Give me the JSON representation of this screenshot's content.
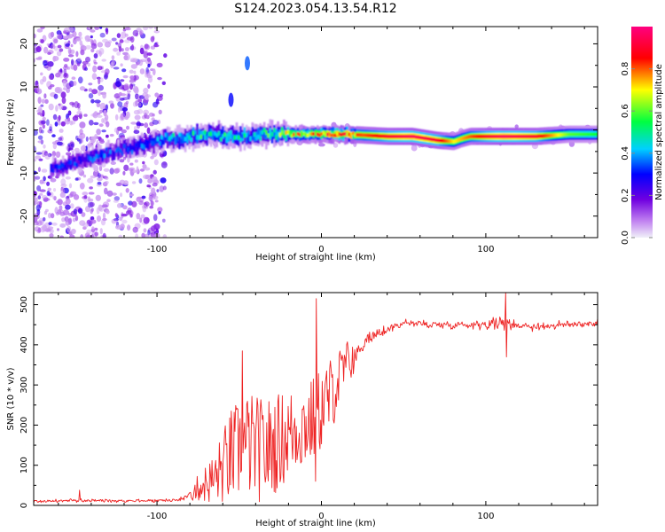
{
  "title": "S124.2023.054.13.54.R12",
  "chart_data": [
    {
      "type": "heatmap",
      "xlabel": "Height of straight line (km)",
      "ylabel": "Frequency (Hz)",
      "xlim": [
        -175,
        168
      ],
      "ylim": [
        -25,
        24
      ],
      "x_ticks": [
        -100,
        0,
        100
      ],
      "y_ticks": [
        -20,
        -10,
        0,
        10,
        20
      ],
      "colorbar": {
        "label": "Normalized spectral amplitude",
        "ticks": [
          0.0,
          0.2,
          0.4,
          0.6,
          0.8
        ],
        "range": [
          0,
          1
        ],
        "colors": [
          "#f0f0f8",
          "#7000e0",
          "#0000ff",
          "#00d0ff",
          "#00ff00",
          "#ffff00",
          "#ff0000",
          "#ff0080"
        ]
      },
      "ridge": {
        "x": [
          -165,
          -155,
          -145,
          -135,
          -125,
          -115,
          -105,
          -95,
          -85,
          -75,
          -65,
          -55,
          -45,
          -35,
          -25,
          -15,
          -5,
          5,
          15,
          25,
          40,
          55,
          70,
          80,
          85,
          90,
          100,
          110,
          130,
          150,
          168
        ],
        "y": [
          -9,
          -8,
          -7,
          -6,
          -5,
          -4,
          -3,
          -2,
          -2,
          -1,
          -1,
          -1.5,
          -1.5,
          -1,
          -1,
          -1,
          -1,
          -1,
          -1,
          -1.2,
          -1.5,
          -1.5,
          -2.4,
          -2.7,
          -2,
          -1.5,
          -1.5,
          -1.5,
          -1.5,
          -1,
          -1
        ],
        "amplitude": [
          0.3,
          0.3,
          0.3,
          0.35,
          0.3,
          0.35,
          0.35,
          0.4,
          0.45,
          0.5,
          0.5,
          0.5,
          0.45,
          0.5,
          0.6,
          0.7,
          0.75,
          0.85,
          0.85,
          0.8,
          0.9,
          0.95,
          0.9,
          0.7,
          0.75,
          0.8,
          0.9,
          0.95,
          0.9,
          0.6,
          0.55
        ]
      },
      "noise_region_x": [
        -175,
        -95
      ],
      "blips": [
        {
          "x": -45,
          "y": 15.5,
          "amp": 0.35
        },
        {
          "x": -55,
          "y": 7,
          "amp": 0.3
        }
      ]
    },
    {
      "type": "line",
      "xlabel": "Height of straight line (km)",
      "ylabel": "SNR (10 * v/v)",
      "xlim": [
        -175,
        168
      ],
      "ylim": [
        0,
        530
      ],
      "x_ticks": [
        -100,
        0,
        100
      ],
      "y_ticks": [
        0,
        100,
        200,
        300,
        400,
        500
      ],
      "color": "#ee2222",
      "envelope": {
        "x": [
          -175,
          -150,
          -100,
          -85,
          -75,
          -65,
          -55,
          -45,
          -35,
          -25,
          -15,
          -5,
          5,
          15,
          25,
          35,
          50,
          70,
          90,
          110,
          130,
          150,
          168
        ],
        "y": [
          10,
          12,
          12,
          15,
          40,
          60,
          110,
          140,
          120,
          150,
          180,
          200,
          260,
          340,
          400,
          430,
          455,
          450,
          450,
          455,
          445,
          450,
          455
        ],
        "jitter": [
          6,
          6,
          6,
          8,
          30,
          60,
          110,
          120,
          120,
          110,
          100,
          100,
          90,
          60,
          25,
          20,
          15,
          15,
          15,
          25,
          15,
          15,
          15
        ]
      },
      "spikes": [
        {
          "x": -147,
          "y": 38
        },
        {
          "x": -48,
          "y": 385
        },
        {
          "x": -3,
          "y": 515
        },
        {
          "x": -3.5,
          "y": 60
        },
        {
          "x": 112,
          "y": 530
        },
        {
          "x": 112.5,
          "y": 370
        }
      ]
    }
  ]
}
